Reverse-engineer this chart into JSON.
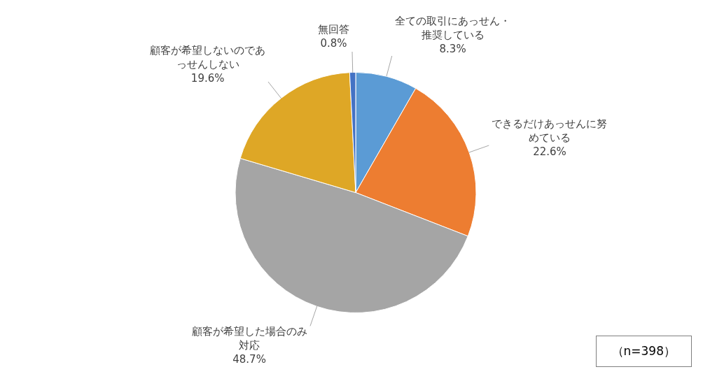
{
  "chart_data": {
    "type": "pie",
    "categories": [
      "全ての取引にあっせん・推奨している",
      "できるだけあっせんに努めている",
      "顧客が希望した場合のみ対応",
      "顧客が希望しないのであっせんしない",
      "無回答"
    ],
    "values": [
      8.3,
      22.6,
      48.7,
      19.6,
      0.8
    ],
    "value_labels": [
      "8.3%",
      "22.6%",
      "48.7%",
      "19.6%",
      "0.8%"
    ],
    "colors": [
      "#5b9bd5",
      "#ed7d31",
      "#a5a5a5",
      "#dea726",
      "#4472c4"
    ],
    "legend": false,
    "annotations": [
      "（n=398）"
    ]
  }
}
